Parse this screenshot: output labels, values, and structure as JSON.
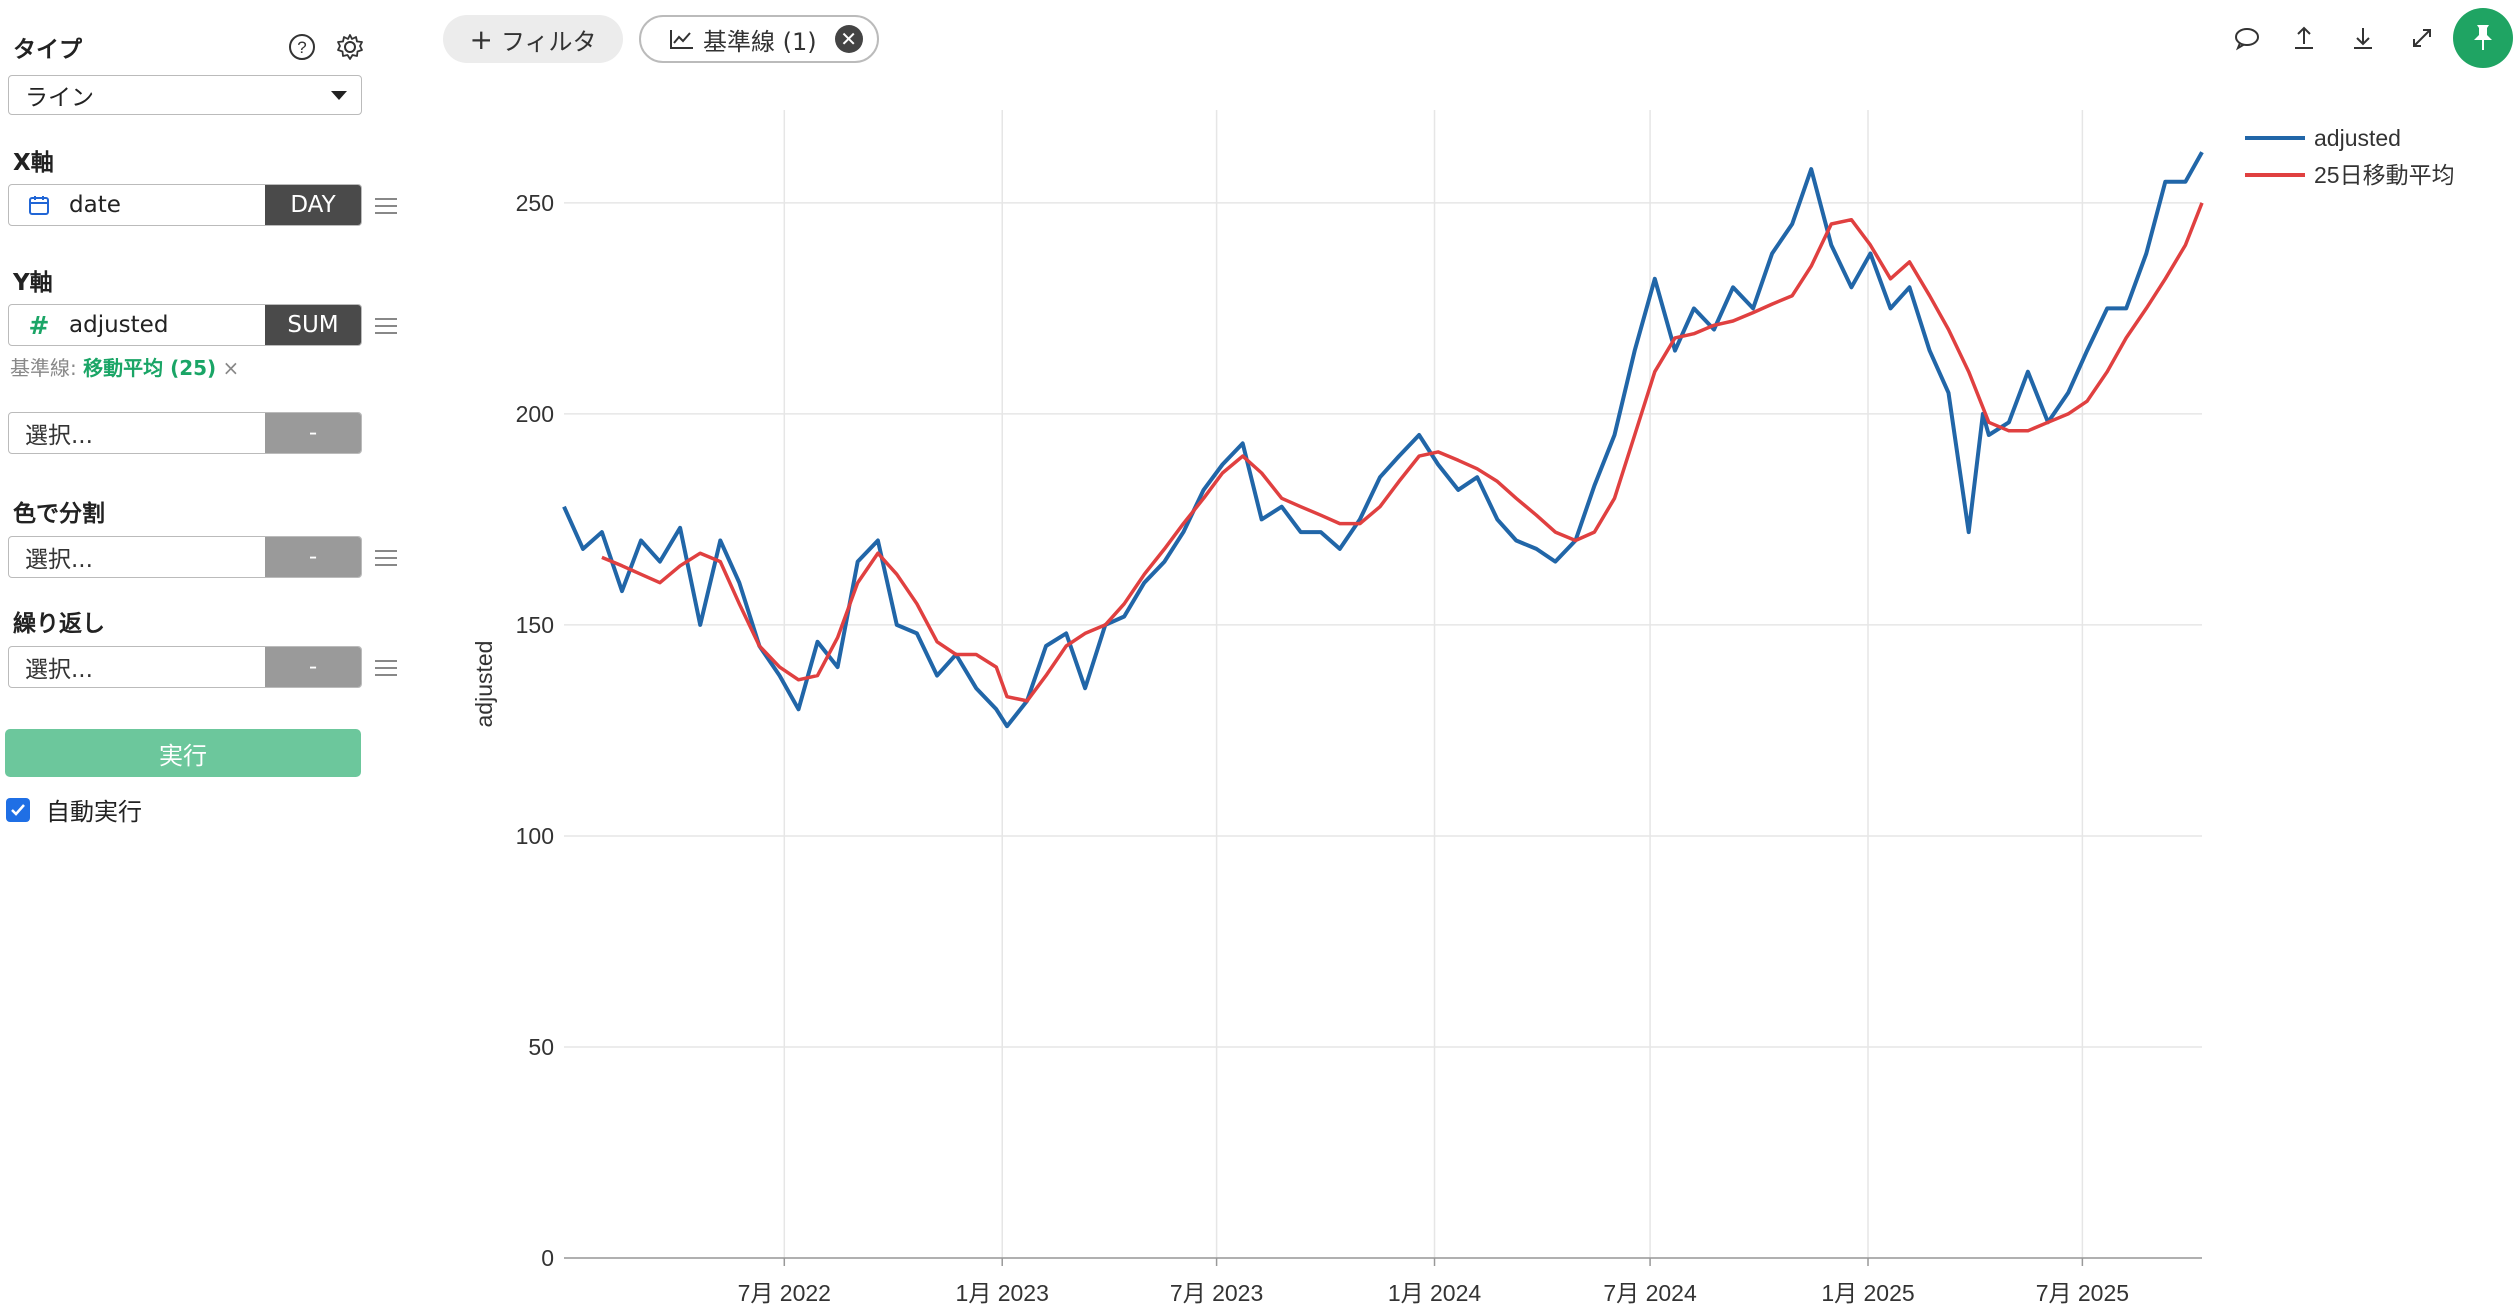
{
  "sidebar": {
    "type_label": "タイプ",
    "type_value": "ライン",
    "x_label": "X軸",
    "x_field": "date",
    "x_agg": "DAY",
    "y_label": "Y軸",
    "y_field": "adjusted",
    "y_agg": "SUM",
    "baseline_prefix": "基準線:",
    "baseline_value": "移動平均 (25)",
    "baseline_remove": "×",
    "extra_select": "選択...",
    "extra_agg": "-",
    "color_label": "色で分割",
    "color_select": "選択...",
    "color_agg": "-",
    "repeat_label": "繰り返し",
    "repeat_select": "選択...",
    "repeat_agg": "-",
    "run_label": "実行",
    "auto_run_label": "自動実行",
    "auto_run_checked": true
  },
  "toolbar": {
    "filter_label": "フィルタ",
    "baseline_label": "基準線 (1)"
  },
  "colors": {
    "series_adjusted": "#2166a8",
    "series_ma": "#e04040",
    "accent_green": "#1fa463"
  },
  "chart_data": {
    "type": "line",
    "ylabel": "adjusted",
    "ylim": [
      0,
      272
    ],
    "yticks": [
      0,
      50,
      100,
      150,
      200,
      250
    ],
    "x_ticks": [
      {
        "label": "7月 2022",
        "date": "2022-07-01"
      },
      {
        "label": "1月 2023",
        "date": "2023-01-01"
      },
      {
        "label": "7月 2023",
        "date": "2023-07-01"
      },
      {
        "label": "1月 2024",
        "date": "2024-01-01"
      },
      {
        "label": "7月 2024",
        "date": "2024-07-01"
      },
      {
        "label": "1月 2025",
        "date": "2025-01-01"
      },
      {
        "label": "7月 2025",
        "date": "2025-07-01"
      }
    ],
    "grid": true,
    "legend_position": "top-right",
    "series": [
      {
        "name": "adjusted",
        "x": [
          "2021-12-27",
          "2022-01-12",
          "2022-01-28",
          "2022-02-14",
          "2022-03-02",
          "2022-03-18",
          "2022-04-04",
          "2022-04-21",
          "2022-05-08",
          "2022-05-24",
          "2022-06-10",
          "2022-06-27",
          "2022-07-13",
          "2022-07-29",
          "2022-08-15",
          "2022-09-01",
          "2022-09-18",
          "2022-10-04",
          "2022-10-21",
          "2022-11-07",
          "2022-11-23",
          "2022-12-10",
          "2022-12-27",
          "2023-01-05",
          "2023-01-22",
          "2023-02-07",
          "2023-02-24",
          "2023-03-12",
          "2023-03-29",
          "2023-04-14",
          "2023-05-01",
          "2023-05-18",
          "2023-06-03",
          "2023-06-20",
          "2023-07-06",
          "2023-07-23",
          "2023-08-08",
          "2023-08-25",
          "2023-09-10",
          "2023-09-27",
          "2023-10-13",
          "2023-10-30",
          "2023-11-16",
          "2023-12-02",
          "2023-12-19",
          "2024-01-04",
          "2024-01-21",
          "2024-02-06",
          "2024-02-23",
          "2024-03-10",
          "2024-03-27",
          "2024-04-12",
          "2024-04-29",
          "2024-05-15",
          "2024-06-01",
          "2024-06-18",
          "2024-07-05",
          "2024-07-22",
          "2024-08-07",
          "2024-08-24",
          "2024-09-09",
          "2024-09-26",
          "2024-10-12",
          "2024-10-29",
          "2024-11-14",
          "2024-12-01",
          "2024-12-18",
          "2025-01-03",
          "2025-01-20",
          "2025-02-05",
          "2025-02-22",
          "2025-03-10",
          "2025-03-27",
          "2025-04-08",
          "2025-04-13",
          "2025-04-30",
          "2025-05-16",
          "2025-06-02",
          "2025-06-19",
          "2025-07-05",
          "2025-07-22",
          "2025-08-07",
          "2025-08-24",
          "2025-09-09",
          "2025-09-26",
          "2025-10-10"
        ],
        "values": [
          178,
          168,
          172,
          158,
          170,
          165,
          173,
          150,
          170,
          160,
          145,
          138,
          130,
          146,
          140,
          165,
          170,
          150,
          148,
          138,
          143,
          135,
          130,
          126,
          132,
          145,
          148,
          135,
          150,
          152,
          160,
          165,
          172,
          182,
          188,
          193,
          175,
          178,
          172,
          172,
          168,
          175,
          185,
          190,
          195,
          188,
          182,
          185,
          175,
          170,
          168,
          165,
          170,
          183,
          195,
          215,
          232,
          215,
          225,
          220,
          230,
          225,
          238,
          245,
          258,
          240,
          230,
          238,
          225,
          230,
          215,
          205,
          172,
          200,
          195,
          198,
          210,
          198,
          205,
          215,
          225,
          225,
          238,
          255,
          255,
          262
        ],
        "color": "#2166a8"
      },
      {
        "name": "25日移動平均",
        "x": [
          "2022-01-28",
          "2022-02-14",
          "2022-03-02",
          "2022-03-18",
          "2022-04-04",
          "2022-04-21",
          "2022-05-08",
          "2022-05-24",
          "2022-06-10",
          "2022-06-27",
          "2022-07-13",
          "2022-07-29",
          "2022-08-15",
          "2022-09-01",
          "2022-09-18",
          "2022-10-04",
          "2022-10-21",
          "2022-11-07",
          "2022-11-23",
          "2022-12-10",
          "2022-12-27",
          "2023-01-05",
          "2023-01-22",
          "2023-02-07",
          "2023-02-24",
          "2023-03-12",
          "2023-03-29",
          "2023-04-14",
          "2023-05-01",
          "2023-05-18",
          "2023-06-03",
          "2023-06-20",
          "2023-07-06",
          "2023-07-23",
          "2023-08-08",
          "2023-08-25",
          "2023-09-10",
          "2023-09-27",
          "2023-10-13",
          "2023-10-30",
          "2023-11-16",
          "2023-12-02",
          "2023-12-19",
          "2024-01-04",
          "2024-01-21",
          "2024-02-06",
          "2024-02-23",
          "2024-03-10",
          "2024-03-27",
          "2024-04-12",
          "2024-04-29",
          "2024-05-15",
          "2024-06-01",
          "2024-06-18",
          "2024-07-05",
          "2024-07-22",
          "2024-08-07",
          "2024-08-24",
          "2024-09-09",
          "2024-09-26",
          "2024-10-12",
          "2024-10-29",
          "2024-11-14",
          "2024-12-01",
          "2024-12-18",
          "2025-01-03",
          "2025-01-20",
          "2025-02-05",
          "2025-02-22",
          "2025-03-10",
          "2025-03-27",
          "2025-04-13",
          "2025-04-30",
          "2025-05-16",
          "2025-06-02",
          "2025-06-19",
          "2025-07-05",
          "2025-07-22",
          "2025-08-07",
          "2025-08-24",
          "2025-09-09",
          "2025-09-26",
          "2025-10-10"
        ],
        "values": [
          166,
          164,
          162,
          160,
          164,
          167,
          165,
          155,
          145,
          140,
          137,
          138,
          147,
          160,
          167,
          162,
          155,
          146,
          143,
          143,
          140,
          133,
          132,
          138,
          145,
          148,
          150,
          155,
          162,
          168,
          174,
          180,
          186,
          190,
          186,
          180,
          178,
          176,
          174,
          174,
          178,
          184,
          190,
          191,
          189,
          187,
          184,
          180,
          176,
          172,
          170,
          172,
          180,
          195,
          210,
          218,
          219,
          221,
          222,
          224,
          226,
          228,
          235,
          245,
          246,
          240,
          232,
          236,
          228,
          220,
          210,
          198,
          196,
          196,
          198,
          200,
          203,
          210,
          218,
          225,
          232,
          240,
          250
        ]
      }
    ]
  }
}
